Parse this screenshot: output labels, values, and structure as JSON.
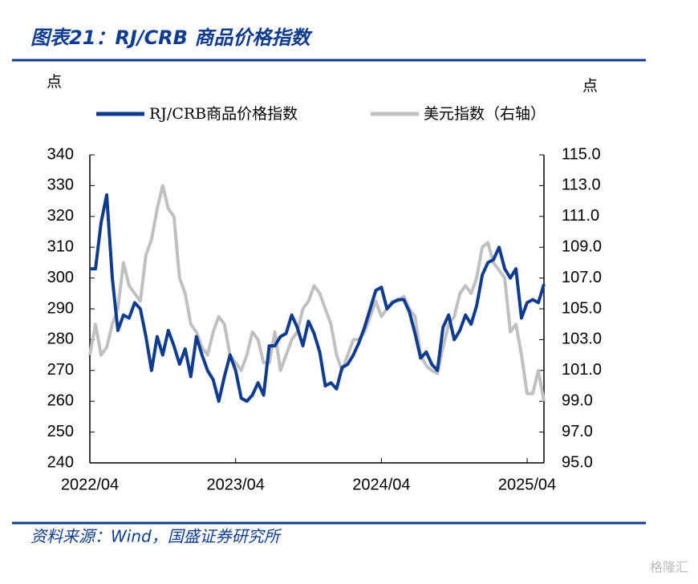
{
  "chart_data": {
    "type": "line",
    "title": "图表21：RJ/CRB 商品价格指数",
    "source": "资料来源：Wind，国盛证券研究所",
    "watermark": "格隆汇",
    "y_unit": "点",
    "y2_unit": "点",
    "x": [
      0,
      2,
      4,
      6,
      8,
      10,
      12,
      14,
      16,
      18,
      20,
      22,
      24,
      26,
      28,
      30,
      32,
      34,
      36,
      38,
      40,
      42,
      44,
      46,
      48,
      50,
      52,
      54,
      56,
      58,
      60,
      62,
      64,
      66,
      68,
      70,
      72,
      74,
      76,
      78,
      80,
      82,
      84,
      86,
      88,
      90,
      92,
      94,
      96,
      98,
      100,
      102,
      104,
      106,
      108,
      110,
      112,
      114,
      116,
      118,
      120,
      122,
      124,
      126,
      128,
      130,
      132,
      134,
      136,
      138,
      140,
      142,
      144,
      146,
      148,
      150,
      152,
      154,
      156,
      158,
      160,
      162
    ],
    "xlim": [
      0,
      162
    ],
    "xticks": [
      {
        "value": 0,
        "label": "2022/04"
      },
      {
        "value": 52,
        "label": "2023/04"
      },
      {
        "value": 104,
        "label": "2024/04"
      },
      {
        "value": 156,
        "label": "2025/04"
      }
    ],
    "ylim": [
      240,
      340
    ],
    "yticks": [
      240,
      250,
      260,
      270,
      280,
      290,
      300,
      310,
      320,
      330,
      340
    ],
    "y2lim": [
      95,
      115
    ],
    "y2ticks": [
      {
        "value": 95,
        "label": "95.0"
      },
      {
        "value": 97,
        "label": "97.0"
      },
      {
        "value": 99,
        "label": "99.0"
      },
      {
        "value": 101,
        "label": "101.0"
      },
      {
        "value": 103,
        "label": "103.0"
      },
      {
        "value": 105,
        "label": "105.0"
      },
      {
        "value": 107,
        "label": "107.0"
      },
      {
        "value": 109,
        "label": "109.0"
      },
      {
        "value": 111,
        "label": "111.0"
      },
      {
        "value": 113,
        "label": "113.0"
      },
      {
        "value": 115,
        "label": "115.0"
      }
    ],
    "series": [
      {
        "name": "RJ/CRB商品价格指数",
        "color": "#0f3c8f",
        "values": [
          303,
          303,
          318,
          327,
          300,
          283,
          288,
          287,
          292,
          290,
          281,
          270,
          281,
          275,
          283,
          278,
          272,
          277,
          268,
          281,
          275,
          270,
          267,
          260,
          268,
          275,
          270,
          261,
          260,
          262,
          266,
          262,
          278,
          278,
          281,
          282,
          288,
          284,
          278,
          286,
          282,
          276,
          265,
          266,
          264,
          271,
          272,
          275,
          279,
          284,
          290,
          296,
          297,
          290,
          292,
          293,
          293,
          289,
          282,
          274,
          276,
          272,
          270,
          284,
          288,
          280,
          283,
          288,
          285,
          291,
          301,
          305,
          306,
          310,
          303,
          300,
          303,
          287,
          292,
          293,
          292,
          298
        ]
      },
      {
        "name": "美元指数（右轴）",
        "color": "#c0c0c0",
        "axis": "y2",
        "values": [
          102,
          104,
          102,
          102.5,
          104,
          105,
          108,
          106.5,
          106,
          105.5,
          108.5,
          109.5,
          111.5,
          113,
          111.5,
          111,
          107,
          106,
          104,
          103.5,
          102.5,
          102,
          103.5,
          104.5,
          104,
          102,
          101.5,
          101,
          102,
          103.5,
          103,
          101.5,
          101.5,
          103.5,
          101,
          102,
          103,
          103.5,
          105,
          105.5,
          106.5,
          106,
          105,
          104,
          102,
          101,
          102,
          103,
          103,
          103.5,
          104.5,
          105.5,
          104.5,
          105,
          105.5,
          105.5,
          105.8,
          105,
          104.5,
          102,
          101.3,
          101,
          100.8,
          102.5,
          104,
          104.5,
          106,
          106.5,
          106,
          107,
          109,
          109.3,
          108,
          107.5,
          107,
          103.5,
          104,
          102,
          99.5,
          99.5,
          101,
          99
        ]
      }
    ]
  }
}
